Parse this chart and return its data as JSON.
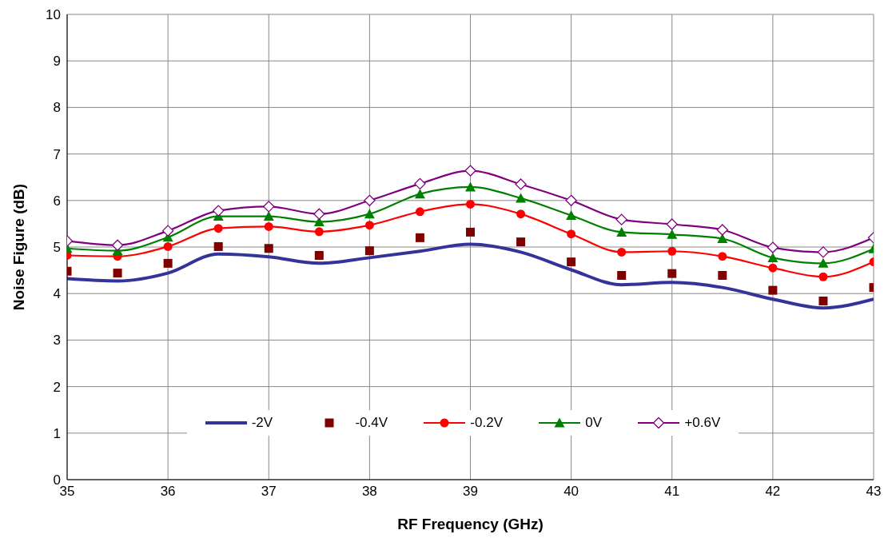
{
  "chart_data": {
    "type": "line",
    "xlabel": "RF Frequency (GHz)",
    "ylabel": "Noise Figure  (dB)",
    "x": [
      35,
      35.5,
      36,
      36.5,
      37,
      37.5,
      38,
      38.5,
      39,
      39.5,
      40,
      40.5,
      41,
      41.5,
      42,
      42.5,
      43
    ],
    "xlim": [
      35,
      43
    ],
    "xticks": [
      35,
      36,
      37,
      38,
      39,
      40,
      41,
      42,
      43
    ],
    "ylim": [
      0,
      10
    ],
    "yticks": [
      0,
      1,
      2,
      3,
      4,
      5,
      6,
      7,
      8,
      9,
      10
    ],
    "grid": true,
    "legend": "bottom",
    "series": [
      {
        "name": "-2V",
        "type": "line",
        "marker": "none",
        "color": "#333399",
        "values": [
          4.32,
          4.27,
          4.44,
          4.85,
          4.79,
          4.65,
          4.77,
          4.91,
          5.06,
          4.89,
          4.51,
          4.19,
          4.24,
          4.13,
          3.88,
          3.69,
          3.88
        ]
      },
      {
        "name": "-0.4V",
        "type": "scatter",
        "marker": "square",
        "color": "#800000",
        "values": [
          4.48,
          4.44,
          4.65,
          5.01,
          4.97,
          4.82,
          4.92,
          5.2,
          5.32,
          5.11,
          4.68,
          4.39,
          4.43,
          4.39,
          4.07,
          3.84,
          4.13
        ]
      },
      {
        "name": "-0.2V",
        "type": "line",
        "marker": "circle",
        "color": "#ff0000",
        "values": [
          4.82,
          4.8,
          5.01,
          5.4,
          5.44,
          5.33,
          5.47,
          5.76,
          5.92,
          5.71,
          5.28,
          4.89,
          4.91,
          4.8,
          4.55,
          4.36,
          4.68
        ]
      },
      {
        "name": "0V",
        "type": "line",
        "marker": "triangle",
        "color": "#008000",
        "values": [
          4.97,
          4.92,
          5.21,
          5.66,
          5.66,
          5.54,
          5.71,
          6.14,
          6.29,
          6.05,
          5.68,
          5.32,
          5.27,
          5.18,
          4.77,
          4.65,
          4.96
        ]
      },
      {
        "name": "+0.6V",
        "type": "line",
        "marker": "diamond",
        "color": "#800080",
        "values": [
          5.13,
          5.04,
          5.35,
          5.78,
          5.87,
          5.71,
          6.0,
          6.36,
          6.64,
          6.35,
          6.0,
          5.59,
          5.49,
          5.37,
          4.99,
          4.89,
          5.2
        ]
      }
    ]
  }
}
